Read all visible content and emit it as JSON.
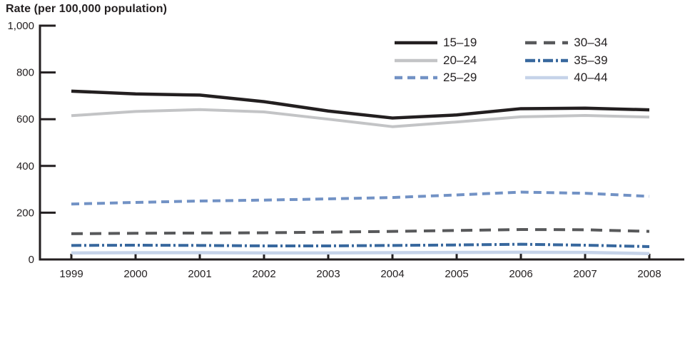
{
  "title": "Rate (per 100,000 population)",
  "axis_color": "#231f20",
  "chart_data": {
    "type": "line",
    "title": "Rate (per 100,000 population)",
    "xlabel": "",
    "ylabel": "Rate (per 100,000 population)",
    "x": [
      1999,
      2000,
      2001,
      2002,
      2003,
      2004,
      2005,
      2006,
      2007,
      2008
    ],
    "ylim": [
      0,
      1000
    ],
    "yticks": [
      0,
      200,
      400,
      600,
      800,
      1000
    ],
    "ytick_labels": [
      "0",
      "200",
      "400",
      "600",
      "800",
      "1,000"
    ],
    "grid": false,
    "legend_position": "top-right-two-columns",
    "series": [
      {
        "name": "15–19",
        "color": "#231f20",
        "dash": "",
        "width": 4.5,
        "values": [
          720,
          708,
          703,
          675,
          635,
          605,
          618,
          645,
          647,
          640
        ]
      },
      {
        "name": "20–24",
        "color": "#c3c4c6",
        "dash": "",
        "width": 4,
        "values": [
          615,
          633,
          641,
          631,
          600,
          568,
          588,
          610,
          616,
          609
        ]
      },
      {
        "name": "25–29",
        "color": "#7292c5",
        "dash": "11 7",
        "width": 4,
        "values": [
          237,
          244,
          250,
          254,
          259,
          265,
          276,
          288,
          283,
          270
        ]
      },
      {
        "name": "30–34",
        "color": "#58595b",
        "dash": "16 10",
        "width": 4,
        "values": [
          110,
          112,
          113,
          114,
          117,
          120,
          124,
          128,
          127,
          120
        ]
      },
      {
        "name": "35–39",
        "color": "#38689e",
        "dash": "14 4 3 4",
        "width": 4,
        "values": [
          60,
          61,
          60,
          58,
          58,
          60,
          62,
          65,
          61,
          55
        ]
      },
      {
        "name": "40–44",
        "color": "#c6d3e9",
        "dash": "",
        "width": 4.5,
        "values": [
          28,
          29,
          29,
          28,
          28,
          29,
          30,
          31,
          30,
          25
        ]
      }
    ]
  }
}
